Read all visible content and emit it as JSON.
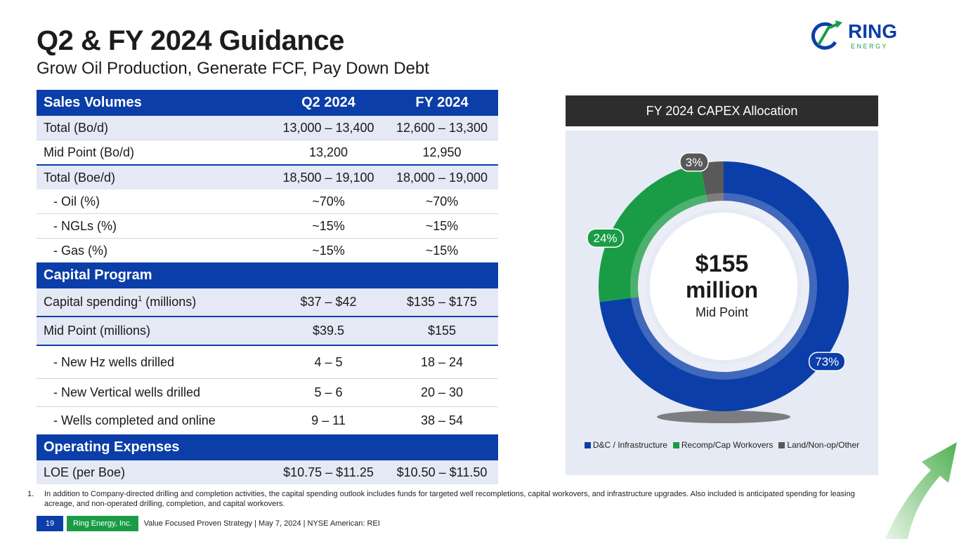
{
  "header": {
    "title": "Q2 & FY 2024 Guidance",
    "subtitle": "Grow Oil Production, Generate FCF, Pay Down Debt"
  },
  "logo": {
    "brand": "RING",
    "tagline": "E N E R G Y"
  },
  "table": {
    "sales_header": {
      "label": "Sales Volumes",
      "q2": "Q2 2024",
      "fy": "FY 2024"
    },
    "rows_sales": [
      {
        "label": "Total (Bo/d)",
        "q2": "13,000 – 13,400",
        "fy": "12,600 – 13,300"
      },
      {
        "label": "Mid Point (Bo/d)",
        "q2": "13,200",
        "fy": "12,950"
      },
      {
        "label": "Total (Boe/d)",
        "q2": "18,500 – 19,100",
        "fy": "18,000 – 19,000"
      },
      {
        "label": "- Oil (%)",
        "q2": "~70%",
        "fy": "~70%"
      },
      {
        "label": "- NGLs (%)",
        "q2": "~15%",
        "fy": "~15%"
      },
      {
        "label": "- Gas (%)",
        "q2": "~15%",
        "fy": "~15%"
      }
    ],
    "capital_header": "Capital Program",
    "rows_capital": [
      {
        "label": "Capital spending",
        "sup": "1",
        "label_suffix": " (millions)",
        "q2": "$37 – $42",
        "fy": "$135 – $175"
      },
      {
        "label": "Mid Point (millions)",
        "q2": "$39.5",
        "fy": "$155"
      },
      {
        "label": "- New Hz wells drilled",
        "q2": "4 – 5",
        "fy": "18 – 24"
      },
      {
        "label": "- New Vertical wells drilled",
        "q2": "5 – 6",
        "fy": "20 – 30"
      },
      {
        "label": "- Wells completed and online",
        "q2": "9 – 11",
        "fy": "38 – 54"
      }
    ],
    "opex_header": "Operating Expenses",
    "rows_opex": [
      {
        "label": "LOE (per Boe)",
        "q2": "$10.75 – $11.25",
        "fy": "$10.50 – $11.50"
      }
    ]
  },
  "chart_data": {
    "type": "pie",
    "title": "FY 2024 CAPEX Allocation",
    "center_value": "$155",
    "center_unit": "million",
    "center_note": "Mid Point",
    "categories": [
      "D&C / Infrastructure",
      "Recomp/Cap Workovers",
      "Land/Non-op/Other"
    ],
    "values": [
      73,
      24,
      3
    ],
    "labels": [
      "73%",
      "24%",
      "3%"
    ],
    "colors": [
      "#0b3ea8",
      "#1a9c47",
      "#595959"
    ],
    "legend_position": "bottom"
  },
  "footnote": {
    "number": "1.",
    "text": "In addition to Company-directed drilling and completion activities, the capital spending outlook includes funds for targeted well recompletions, capital workovers, and infrastructure upgrades. Also included is anticipated spending for leasing acreage, and non-operated drilling, completion, and capital workovers."
  },
  "footer": {
    "page": "19",
    "company": "Ring Energy, Inc.",
    "text": "Value Focused Proven Strategy  | May 7, 2024 |  NYSE American: REI"
  }
}
